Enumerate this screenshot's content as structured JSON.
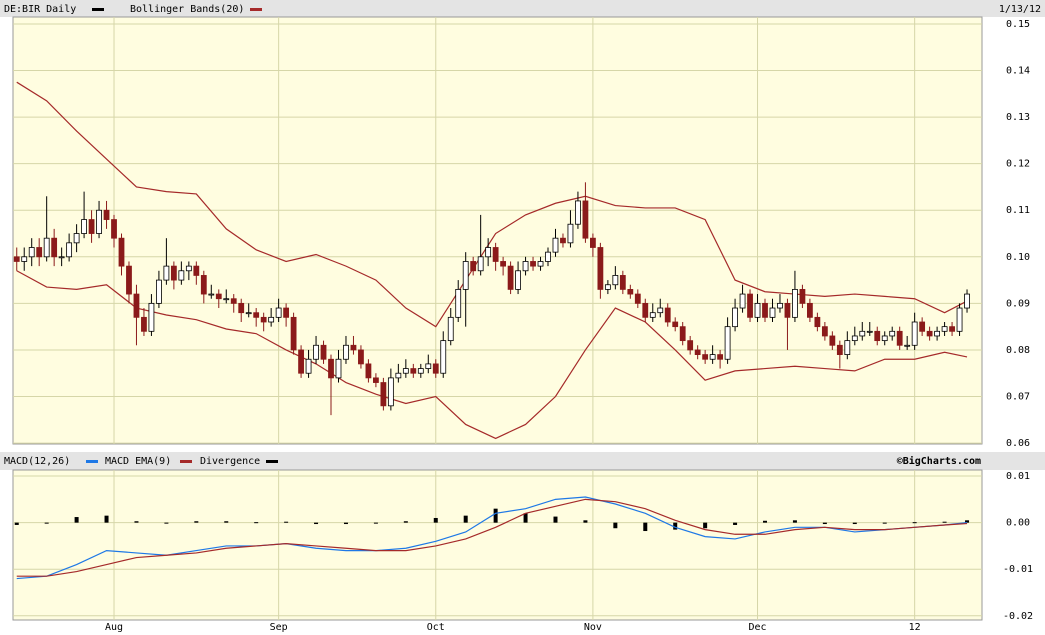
{
  "chart_data": {
    "type": "candlestick",
    "title": "DE:BIR Daily",
    "date": "1/13/12",
    "credit": "©BigCharts.com",
    "candle_up_color": "#ffffff",
    "candle_down_color": "#8b1a1a",
    "xlim": [
      -0.5,
      129
    ],
    "xticks": [
      {
        "value": 13,
        "label": "Aug"
      },
      {
        "value": 35,
        "label": "Sep"
      },
      {
        "value": 56,
        "label": "Oct"
      },
      {
        "value": 77,
        "label": "Nov"
      },
      {
        "value": 99,
        "label": "Dec"
      },
      {
        "value": 120,
        "label": "12"
      }
    ],
    "ylim": [
      0.0598,
      0.1515
    ],
    "yticks": [
      {
        "value": 0.06,
        "label": "0.06"
      },
      {
        "value": 0.07,
        "label": "0.07"
      },
      {
        "value": 0.08,
        "label": "0.08"
      },
      {
        "value": 0.09,
        "label": "0.09"
      },
      {
        "value": 0.1,
        "label": "0.10"
      },
      {
        "value": 0.11,
        "label": "0.11"
      },
      {
        "value": 0.12,
        "label": "0.12"
      },
      {
        "value": 0.13,
        "label": "0.13"
      },
      {
        "value": 0.14,
        "label": "0.14"
      },
      {
        "value": 0.15,
        "label": "0.15"
      }
    ],
    "grid": true,
    "candles": [
      [
        0.1,
        0.102,
        0.097,
        0.099
      ],
      [
        0.099,
        0.102,
        0.097,
        0.1
      ],
      [
        0.1,
        0.104,
        0.098,
        0.102
      ],
      [
        0.102,
        0.104,
        0.098,
        0.1
      ],
      [
        0.1,
        0.113,
        0.099,
        0.104
      ],
      [
        0.104,
        0.106,
        0.098,
        0.1
      ],
      [
        0.1,
        0.102,
        0.098,
        0.1
      ],
      [
        0.1,
        0.105,
        0.099,
        0.103
      ],
      [
        0.103,
        0.107,
        0.101,
        0.105
      ],
      [
        0.105,
        0.114,
        0.104,
        0.108
      ],
      [
        0.108,
        0.11,
        0.103,
        0.105
      ],
      [
        0.105,
        0.112,
        0.104,
        0.11
      ],
      [
        0.11,
        0.112,
        0.106,
        0.108
      ],
      [
        0.108,
        0.109,
        0.102,
        0.104
      ],
      [
        0.104,
        0.105,
        0.096,
        0.098
      ],
      [
        0.098,
        0.099,
        0.09,
        0.092
      ],
      [
        0.092,
        0.094,
        0.081,
        0.087
      ],
      [
        0.087,
        0.089,
        0.083,
        0.084
      ],
      [
        0.084,
        0.092,
        0.083,
        0.09
      ],
      [
        0.09,
        0.097,
        0.089,
        0.095
      ],
      [
        0.095,
        0.104,
        0.094,
        0.098
      ],
      [
        0.098,
        0.099,
        0.093,
        0.095
      ],
      [
        0.095,
        0.099,
        0.094,
        0.097
      ],
      [
        0.097,
        0.099,
        0.095,
        0.098
      ],
      [
        0.098,
        0.099,
        0.094,
        0.096
      ],
      [
        0.096,
        0.097,
        0.09,
        0.092
      ],
      [
        0.092,
        0.094,
        0.091,
        0.092
      ],
      [
        0.092,
        0.093,
        0.089,
        0.091
      ],
      [
        0.091,
        0.093,
        0.09,
        0.091
      ],
      [
        0.091,
        0.092,
        0.088,
        0.09
      ],
      [
        0.09,
        0.091,
        0.086,
        0.088
      ],
      [
        0.088,
        0.09,
        0.087,
        0.088
      ],
      [
        0.088,
        0.089,
        0.085,
        0.087
      ],
      [
        0.087,
        0.088,
        0.084,
        0.086
      ],
      [
        0.086,
        0.089,
        0.085,
        0.087
      ],
      [
        0.087,
        0.091,
        0.086,
        0.089
      ],
      [
        0.089,
        0.09,
        0.085,
        0.087
      ],
      [
        0.087,
        0.088,
        0.079,
        0.08
      ],
      [
        0.08,
        0.081,
        0.074,
        0.075
      ],
      [
        0.075,
        0.08,
        0.074,
        0.078
      ],
      [
        0.078,
        0.083,
        0.077,
        0.081
      ],
      [
        0.081,
        0.082,
        0.077,
        0.078
      ],
      [
        0.078,
        0.079,
        0.066,
        0.074
      ],
      [
        0.074,
        0.08,
        0.073,
        0.078
      ],
      [
        0.078,
        0.083,
        0.077,
        0.081
      ],
      [
        0.081,
        0.083,
        0.079,
        0.08
      ],
      [
        0.08,
        0.081,
        0.076,
        0.077
      ],
      [
        0.077,
        0.078,
        0.073,
        0.074
      ],
      [
        0.074,
        0.075,
        0.072,
        0.073
      ],
      [
        0.073,
        0.074,
        0.067,
        0.068
      ],
      [
        0.068,
        0.076,
        0.067,
        0.074
      ],
      [
        0.074,
        0.077,
        0.073,
        0.075
      ],
      [
        0.075,
        0.078,
        0.074,
        0.076
      ],
      [
        0.076,
        0.077,
        0.074,
        0.075
      ],
      [
        0.075,
        0.077,
        0.074,
        0.076
      ],
      [
        0.076,
        0.079,
        0.075,
        0.077
      ],
      [
        0.077,
        0.078,
        0.074,
        0.075
      ],
      [
        0.075,
        0.084,
        0.074,
        0.082
      ],
      [
        0.082,
        0.089,
        0.081,
        0.087
      ],
      [
        0.087,
        0.095,
        0.086,
        0.093
      ],
      [
        0.093,
        0.101,
        0.085,
        0.099
      ],
      [
        0.099,
        0.1,
        0.096,
        0.097
      ],
      [
        0.097,
        0.109,
        0.096,
        0.1
      ],
      [
        0.1,
        0.104,
        0.098,
        0.102
      ],
      [
        0.102,
        0.103,
        0.097,
        0.099
      ],
      [
        0.099,
        0.1,
        0.096,
        0.098
      ],
      [
        0.098,
        0.099,
        0.092,
        0.093
      ],
      [
        0.093,
        0.099,
        0.092,
        0.097
      ],
      [
        0.097,
        0.1,
        0.096,
        0.099
      ],
      [
        0.099,
        0.1,
        0.097,
        0.098
      ],
      [
        0.098,
        0.1,
        0.097,
        0.099
      ],
      [
        0.099,
        0.102,
        0.098,
        0.101
      ],
      [
        0.101,
        0.106,
        0.1,
        0.104
      ],
      [
        0.104,
        0.105,
        0.102,
        0.103
      ],
      [
        0.103,
        0.11,
        0.102,
        0.107
      ],
      [
        0.107,
        0.114,
        0.106,
        0.112
      ],
      [
        0.112,
        0.116,
        0.103,
        0.104
      ],
      [
        0.104,
        0.105,
        0.1,
        0.102
      ],
      [
        0.102,
        0.103,
        0.091,
        0.093
      ],
      [
        0.093,
        0.095,
        0.092,
        0.094
      ],
      [
        0.094,
        0.098,
        0.093,
        0.096
      ],
      [
        0.096,
        0.097,
        0.092,
        0.093
      ],
      [
        0.093,
        0.094,
        0.091,
        0.092
      ],
      [
        0.092,
        0.093,
        0.089,
        0.09
      ],
      [
        0.09,
        0.091,
        0.086,
        0.087
      ],
      [
        0.087,
        0.09,
        0.086,
        0.088
      ],
      [
        0.088,
        0.091,
        0.087,
        0.089
      ],
      [
        0.089,
        0.09,
        0.085,
        0.086
      ],
      [
        0.086,
        0.087,
        0.084,
        0.085
      ],
      [
        0.085,
        0.086,
        0.081,
        0.082
      ],
      [
        0.082,
        0.083,
        0.079,
        0.08
      ],
      [
        0.08,
        0.081,
        0.078,
        0.079
      ],
      [
        0.079,
        0.08,
        0.077,
        0.078
      ],
      [
        0.078,
        0.081,
        0.077,
        0.079
      ],
      [
        0.079,
        0.08,
        0.076,
        0.078
      ],
      [
        0.078,
        0.087,
        0.077,
        0.085
      ],
      [
        0.085,
        0.091,
        0.084,
        0.089
      ],
      [
        0.089,
        0.094,
        0.088,
        0.092
      ],
      [
        0.092,
        0.093,
        0.086,
        0.087
      ],
      [
        0.087,
        0.092,
        0.086,
        0.09
      ],
      [
        0.09,
        0.091,
        0.086,
        0.087
      ],
      [
        0.087,
        0.091,
        0.086,
        0.089
      ],
      [
        0.089,
        0.092,
        0.088,
        0.09
      ],
      [
        0.09,
        0.091,
        0.08,
        0.087
      ],
      [
        0.087,
        0.097,
        0.086,
        0.093
      ],
      [
        0.093,
        0.094,
        0.089,
        0.09
      ],
      [
        0.09,
        0.091,
        0.086,
        0.087
      ],
      [
        0.087,
        0.088,
        0.084,
        0.085
      ],
      [
        0.085,
        0.086,
        0.082,
        0.083
      ],
      [
        0.083,
        0.084,
        0.08,
        0.081
      ],
      [
        0.081,
        0.082,
        0.076,
        0.079
      ],
      [
        0.079,
        0.084,
        0.078,
        0.082
      ],
      [
        0.082,
        0.085,
        0.081,
        0.083
      ],
      [
        0.083,
        0.086,
        0.082,
        0.084
      ],
      [
        0.084,
        0.086,
        0.083,
        0.084
      ],
      [
        0.084,
        0.085,
        0.081,
        0.082
      ],
      [
        0.082,
        0.084,
        0.081,
        0.083
      ],
      [
        0.083,
        0.085,
        0.082,
        0.084
      ],
      [
        0.084,
        0.085,
        0.08,
        0.081
      ],
      [
        0.081,
        0.083,
        0.08,
        0.081
      ],
      [
        0.081,
        0.088,
        0.08,
        0.086
      ],
      [
        0.086,
        0.087,
        0.083,
        0.084
      ],
      [
        0.084,
        0.085,
        0.082,
        0.083
      ],
      [
        0.083,
        0.085,
        0.082,
        0.084
      ],
      [
        0.084,
        0.086,
        0.083,
        0.085
      ],
      [
        0.085,
        0.086,
        0.083,
        0.084
      ],
      [
        0.084,
        0.09,
        0.083,
        0.089
      ],
      [
        0.089,
        0.093,
        0.088,
        0.092
      ]
    ],
    "bollinger": {
      "name": "Bollinger Bands(20)",
      "color": "#a52a2a",
      "x": [
        0,
        4,
        8,
        12,
        16,
        20,
        24,
        28,
        32,
        36,
        40,
        44,
        48,
        52,
        56,
        60,
        64,
        68,
        72,
        76,
        80,
        84,
        88,
        92,
        96,
        100,
        104,
        108,
        112,
        116,
        120,
        124,
        127
      ],
      "upper": [
        0.1375,
        0.1335,
        0.127,
        0.121,
        0.115,
        0.114,
        0.1135,
        0.106,
        0.1015,
        0.099,
        0.1005,
        0.098,
        0.095,
        0.089,
        0.085,
        0.095,
        0.105,
        0.109,
        0.1115,
        0.113,
        0.111,
        0.1105,
        0.1105,
        0.108,
        0.095,
        0.0925,
        0.092,
        0.0915,
        0.092,
        0.0915,
        0.091,
        0.088,
        0.0905
      ],
      "lower": [
        0.097,
        0.0935,
        0.093,
        0.094,
        0.089,
        0.0875,
        0.0865,
        0.0845,
        0.0835,
        0.08,
        0.077,
        0.073,
        0.0705,
        0.0685,
        0.07,
        0.064,
        0.061,
        0.064,
        0.07,
        0.08,
        0.089,
        0.086,
        0.08,
        0.0735,
        0.0755,
        0.076,
        0.0765,
        0.076,
        0.0755,
        0.078,
        0.078,
        0.0795,
        0.0785
      ]
    },
    "macd": {
      "ylim": [
        -0.0209,
        0.0113
      ],
      "yticks": [
        {
          "value": 0.01,
          "label": "0.01"
        },
        {
          "value": 0,
          "label": "0.00"
        },
        {
          "value": -0.01,
          "label": "-0.01"
        },
        {
          "value": -0.02,
          "label": "-0.02"
        }
      ],
      "x": [
        0,
        4,
        8,
        12,
        16,
        20,
        24,
        28,
        32,
        36,
        40,
        44,
        48,
        52,
        56,
        60,
        64,
        68,
        72,
        76,
        80,
        84,
        88,
        92,
        96,
        100,
        104,
        108,
        112,
        116,
        120,
        124,
        127
      ],
      "series": [
        {
          "name": "MACD(12,26)",
          "color": "#1e78e6",
          "values": [
            -0.012,
            -0.0115,
            -0.009,
            -0.006,
            -0.0065,
            -0.007,
            -0.006,
            -0.005,
            -0.005,
            -0.0045,
            -0.0055,
            -0.006,
            -0.006,
            -0.0055,
            -0.004,
            -0.002,
            0.002,
            0.003,
            0.005,
            0.0055,
            0.004,
            0.002,
            -0.001,
            -0.003,
            -0.0035,
            -0.002,
            -0.001,
            -0.001,
            -0.002,
            -0.0015,
            -0.001,
            -0.0005,
            0
          ]
        },
        {
          "name": "MACD EMA(9)",
          "color": "#a52a2a",
          "values": [
            -0.0115,
            -0.0115,
            -0.0105,
            -0.009,
            -0.0075,
            -0.007,
            -0.0065,
            -0.0055,
            -0.005,
            -0.0045,
            -0.005,
            -0.0055,
            -0.006,
            -0.006,
            -0.005,
            -0.0035,
            -0.001,
            0.002,
            0.0035,
            0.005,
            0.0045,
            0.003,
            0.0005,
            -0.0015,
            -0.0025,
            -0.0025,
            -0.0015,
            -0.001,
            -0.0015,
            -0.0015,
            -0.001,
            -0.0005,
            -0.0002
          ]
        }
      ],
      "divergence": {
        "name": "Divergence",
        "color": "#000000",
        "values": [
          -0.0005,
          0,
          0.0012,
          0.0015,
          0.0003,
          -0.0002,
          0.0003,
          0.0003,
          0.0001,
          0.0002,
          -0.0003,
          -0.0003,
          -0.0002,
          0.0003,
          0.001,
          0.0015,
          0.003,
          0.002,
          0.0013,
          0.0005,
          -0.0012,
          -0.0018,
          -0.0015,
          -0.0012,
          -0.0005,
          0.0004,
          0.0005,
          -0.0003,
          -0.0003,
          0,
          0.0001,
          0.0002,
          0.0005
        ]
      }
    }
  }
}
